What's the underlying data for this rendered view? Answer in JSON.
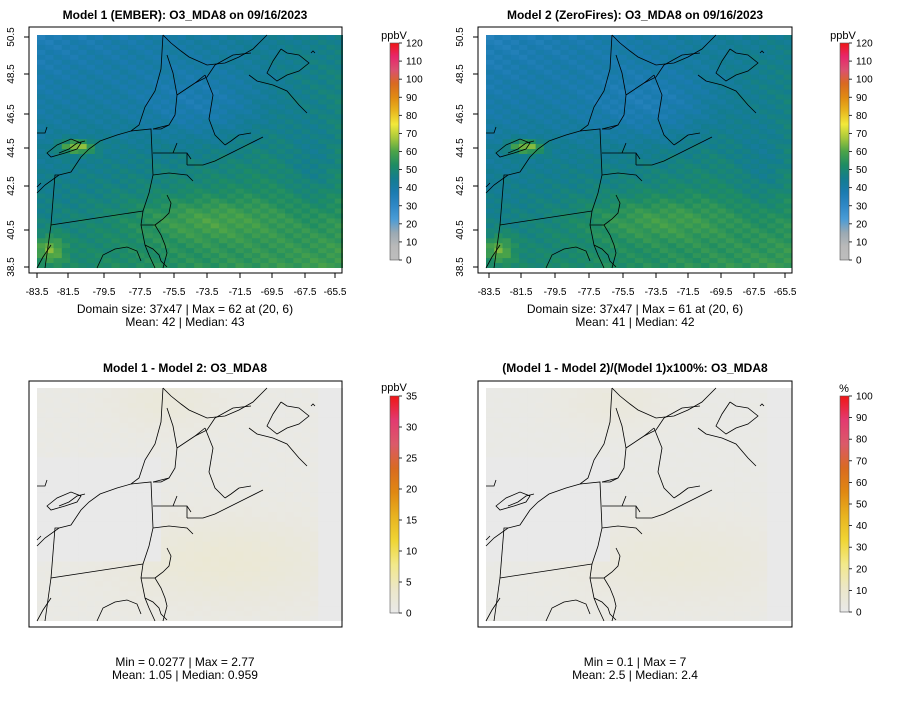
{
  "colors": {
    "background": "#ffffff",
    "frame": "#000000",
    "ocean": "#e6e6e6",
    "conc_ramp": [
      "#bdbdbd",
      "#b9b9b9",
      "#9aa9b3",
      "#4a9cd6",
      "#2f88c6",
      "#1a7bb0",
      "#137d8f",
      "#1e8c63",
      "#4ba348",
      "#a8c83a",
      "#f2e93a",
      "#e8b51e",
      "#e08a12",
      "#d96a20",
      "#db5170",
      "#e8266a",
      "#f01616"
    ],
    "diff_ramp": [
      "#e9e9e9",
      "#ece7c8",
      "#f2e98a",
      "#f0d534",
      "#e8b320",
      "#e08812",
      "#d96a20",
      "#db5a6a",
      "#e33a70",
      "#f01616"
    ]
  },
  "chart_data": [
    {
      "type": "heatmap",
      "name": "model1",
      "title": "Model 1 (EMBER): O3_MDA8 on 09/16/2023",
      "variable": "O3_MDA8",
      "date": "09/16/2023",
      "x_ticks": [
        "-83.5",
        "-81.5",
        "-79.5",
        "-77.5",
        "-75.5",
        "-73.5",
        "-71.5",
        "-69.5",
        "-67.5",
        "-65.5"
      ],
      "y_ticks": [
        "38.5",
        "40.5",
        "42.5",
        "44.5",
        "46.5",
        "48.5",
        "50.5"
      ],
      "xlim": [
        -84.2,
        -64.8
      ],
      "ylim": [
        38.2,
        50.9
      ],
      "colorbar": {
        "unit": "ppbV",
        "min": 0,
        "max": 120,
        "ticks": [
          "0",
          "10",
          "20",
          "30",
          "40",
          "50",
          "60",
          "70",
          "80",
          "90",
          "100",
          "110",
          "120"
        ]
      },
      "stats": {
        "line1": "Domain size: 37x47 | Max = 62 at (20, 6)",
        "line2": "Mean: 42 |  Median: 43"
      },
      "grid_rows": 47,
      "grid_cols": 37,
      "max_value": 62,
      "max_cell": [
        20,
        6
      ],
      "mean": 42,
      "median": 43
    },
    {
      "type": "heatmap",
      "name": "model2",
      "title": "Model 2 (ZeroFires): O3_MDA8 on 09/16/2023",
      "variable": "O3_MDA8",
      "date": "09/16/2023",
      "x_ticks": [
        "-83.5",
        "-81.5",
        "-79.5",
        "-77.5",
        "-75.5",
        "-73.5",
        "-71.5",
        "-69.5",
        "-67.5",
        "-65.5"
      ],
      "y_ticks": [
        "38.5",
        "40.5",
        "42.5",
        "44.5",
        "46.5",
        "48.5",
        "50.5"
      ],
      "xlim": [
        -84.2,
        -64.8
      ],
      "ylim": [
        38.2,
        50.9
      ],
      "colorbar": {
        "unit": "ppbV",
        "min": 0,
        "max": 120,
        "ticks": [
          "0",
          "10",
          "20",
          "30",
          "40",
          "50",
          "60",
          "70",
          "80",
          "90",
          "100",
          "110",
          "120"
        ]
      },
      "stats": {
        "line1": "Domain size: 37x47 | Max = 61 at (20, 6)",
        "line2": "Mean: 41 |  Median: 42"
      },
      "grid_rows": 47,
      "grid_cols": 37,
      "max_value": 61,
      "max_cell": [
        20,
        6
      ],
      "mean": 41,
      "median": 42
    },
    {
      "type": "heatmap",
      "name": "difference",
      "title": "Model 1 - Model 2: O3_MDA8",
      "variable": "O3_MDA8",
      "colorbar": {
        "unit": "ppbV",
        "min": 0,
        "max": 35,
        "ticks": [
          "0",
          "5",
          "10",
          "15",
          "20",
          "25",
          "30",
          "35"
        ]
      },
      "stats": {
        "line1": "Min = 0.0277 | Max = 2.77",
        "line2": "Mean: 1.05 |  Median: 0.959"
      },
      "min_value": 0.0277,
      "max_value": 2.77,
      "mean": 1.05,
      "median": 0.959
    },
    {
      "type": "heatmap",
      "name": "percent_difference",
      "title": "(Model 1 - Model 2)/(Model 1)x100%: O3_MDA8",
      "variable": "O3_MDA8",
      "colorbar": {
        "unit": "%",
        "min": 0,
        "max": 100,
        "ticks": [
          "0",
          "10",
          "20",
          "30",
          "40",
          "50",
          "60",
          "70",
          "80",
          "90",
          "100"
        ]
      },
      "stats": {
        "line1": "Min = 0.1 | Max = 7",
        "line2": "Mean: 2.5 |  Median: 2.4"
      },
      "min_value": 0.1,
      "max_value": 7,
      "mean": 2.5,
      "median": 2.4
    }
  ]
}
